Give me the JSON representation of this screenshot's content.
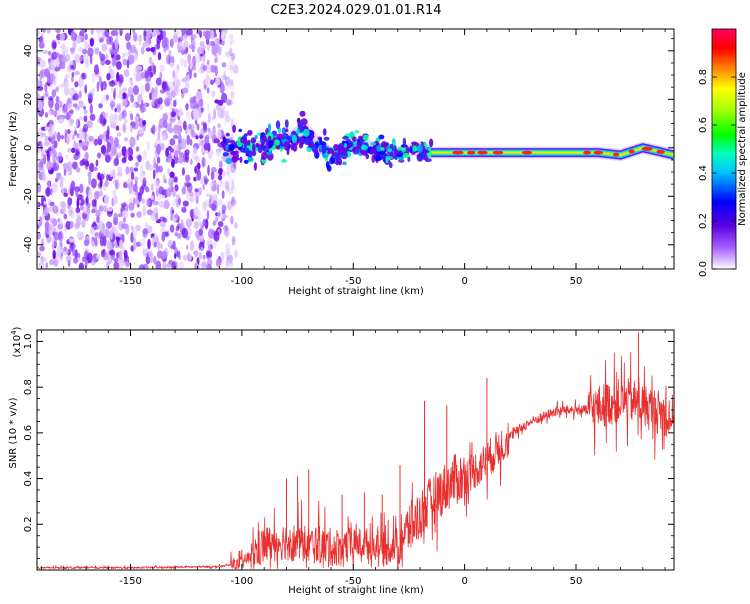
{
  "figure": {
    "title": "C2E3.2024.029.01.01.R14"
  },
  "chart_data": [
    {
      "type": "heatmap",
      "title": "C2E3.2024.029.01.01.R14",
      "xlabel": "Height of straight line (km)",
      "ylabel": "Frequency (Hz)",
      "xlim": [
        -192,
        94
      ],
      "ylim": [
        -50,
        49
      ],
      "xticks": [
        -150,
        -100,
        -50,
        0,
        50
      ],
      "yticks": [
        -40,
        -20,
        0,
        20,
        40
      ],
      "noise_region_x": [
        -192,
        -108
      ],
      "signal_track": {
        "x": [
          -108,
          -95,
          -80,
          -72,
          -65,
          -58,
          -50,
          -40,
          -30,
          -20,
          -15,
          0,
          20,
          40,
          60,
          70,
          80,
          94
        ],
        "freq": [
          1,
          0,
          3,
          8,
          0,
          -3,
          2,
          0,
          -2,
          0,
          -2,
          -2,
          -2,
          -2,
          -2,
          -3,
          0,
          -3
        ]
      },
      "colorbar": {
        "label": "Normalized spectral amplitude",
        "ticks": [
          "0.0",
          "0.2",
          "0.4",
          "0.6",
          "0.8"
        ],
        "range": [
          0.0,
          1.0
        ]
      }
    },
    {
      "type": "line",
      "xlabel": "Height of straight line (km)",
      "ylabel": "SNR (10 * v/v)",
      "scale_label": "(x10",
      "scale_exponent": "4",
      "scale_suffix": ")",
      "xlim": [
        -192,
        94
      ],
      "ylim": [
        0.0,
        1.05
      ],
      "xticks": [
        -150,
        -100,
        -50,
        0,
        50
      ],
      "yticks": [
        0.2,
        0.4,
        0.6,
        0.8,
        1.0
      ],
      "ytick_labels": [
        "0.2",
        "0.4",
        "0.6",
        "0.8",
        "1.0"
      ],
      "series": [
        {
          "name": "SNR",
          "color": "#e83030",
          "x": [
            -192,
            -150,
            -110,
            -100,
            -95,
            -90,
            -85,
            -80,
            -75,
            -70,
            -65,
            -60,
            -55,
            -50,
            -45,
            -40,
            -35,
            -30,
            -25,
            -20,
            -15,
            -10,
            -5,
            0,
            5,
            10,
            15,
            20,
            25,
            30,
            35,
            40,
            45,
            50,
            55,
            60,
            65,
            70,
            75,
            80,
            85,
            90,
            94
          ],
          "y": [
            0.01,
            0.01,
            0.015,
            0.03,
            0.07,
            0.11,
            0.12,
            0.13,
            0.12,
            0.11,
            0.11,
            0.1,
            0.1,
            0.11,
            0.12,
            0.1,
            0.09,
            0.12,
            0.18,
            0.24,
            0.3,
            0.35,
            0.39,
            0.41,
            0.44,
            0.48,
            0.53,
            0.58,
            0.62,
            0.65,
            0.67,
            0.69,
            0.7,
            0.7,
            0.7,
            0.71,
            0.73,
            0.74,
            0.74,
            0.72,
            0.7,
            0.68,
            0.67
          ],
          "spikes": [
            {
              "x": -80,
              "y": 0.4
            },
            {
              "x": -75,
              "y": 0.41
            },
            {
              "x": -70,
              "y": 0.44
            },
            {
              "x": -55,
              "y": 0.33
            },
            {
              "x": -45,
              "y": 0.34
            },
            {
              "x": -37,
              "y": 0.33
            },
            {
              "x": -29,
              "y": 0.46
            },
            {
              "x": -18,
              "y": 0.74
            },
            {
              "x": -8,
              "y": 0.72
            },
            {
              "x": 10,
              "y": 0.84
            },
            {
              "x": 78,
              "y": 1.04
            }
          ]
        }
      ]
    }
  ]
}
